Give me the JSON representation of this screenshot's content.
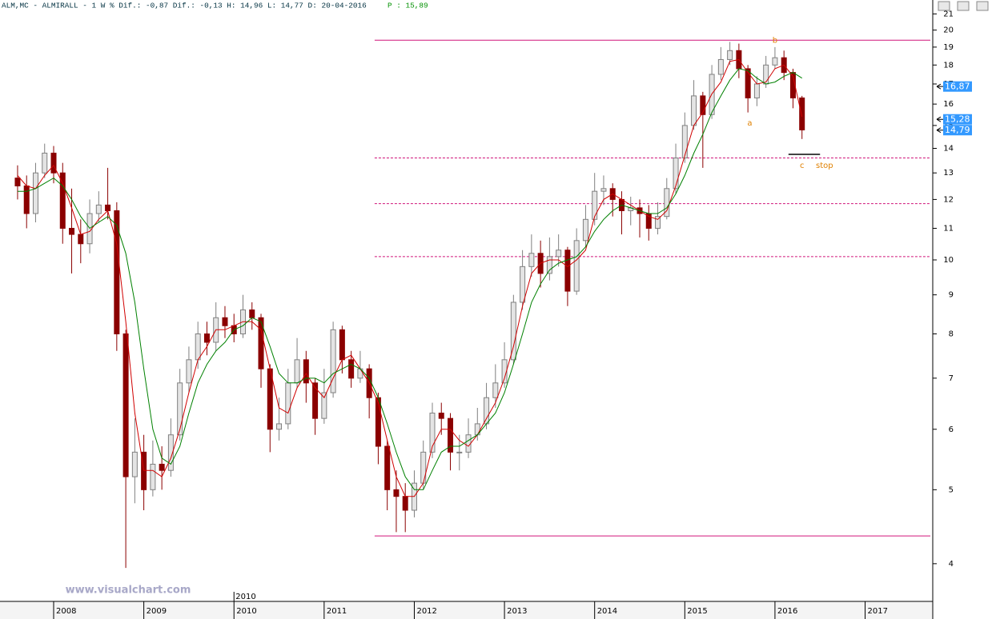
{
  "chart_data": {
    "type": "candlestick",
    "header": {
      "text": "ALM,MC - ALMIRALL -  1 W % Dif.: -0,87 Dif.: -0,13 H: 14,96 L: 14,77 D: 20-04-2016",
      "price": "P : 15,89"
    },
    "watermark": "www.visualchart.com",
    "log_scale": true,
    "xlim": [
      2007.405,
      2017.75
    ],
    "xticks": [
      2008,
      2009,
      2010,
      2011,
      2012,
      2013,
      2014,
      2015,
      2016,
      2017
    ],
    "cursor_label": {
      "value": 2010,
      "label": "2010"
    },
    "ylim": [
      3.57,
      21.9
    ],
    "yticks": [
      4,
      5,
      6,
      7,
      8,
      9,
      10,
      11,
      12,
      13,
      14,
      15,
      16,
      17,
      18,
      19,
      20,
      21
    ],
    "up_color": "#e4e4e4",
    "down_color": "#8b0000",
    "x": [
      2007.6,
      2007.7,
      2007.8,
      2007.9,
      2008.0,
      2008.1,
      2008.2,
      2008.3,
      2008.4,
      2008.5,
      2008.6,
      2008.7,
      2008.8,
      2008.9,
      2009.0,
      2009.1,
      2009.2,
      2009.3,
      2009.4,
      2009.5,
      2009.6,
      2009.7,
      2009.8,
      2009.9,
      2010.0,
      2010.1,
      2010.2,
      2010.3,
      2010.4,
      2010.5,
      2010.6,
      2010.7,
      2010.8,
      2010.9,
      2011.0,
      2011.1,
      2011.2,
      2011.3,
      2011.4,
      2011.5,
      2011.6,
      2011.7,
      2011.8,
      2011.9,
      2012.0,
      2012.1,
      2012.2,
      2012.3,
      2012.4,
      2012.5,
      2012.6,
      2012.7,
      2012.8,
      2012.9,
      2013.0,
      2013.1,
      2013.2,
      2013.3,
      2013.4,
      2013.5,
      2013.6,
      2013.7,
      2013.8,
      2013.9,
      2014.0,
      2014.1,
      2014.2,
      2014.3,
      2014.4,
      2014.5,
      2014.6,
      2014.7,
      2014.8,
      2014.9,
      2015.0,
      2015.1,
      2015.2,
      2015.3,
      2015.4,
      2015.5,
      2015.6,
      2015.7,
      2015.8,
      2015.9,
      2016.0,
      2016.1,
      2016.2,
      2016.3
    ],
    "open": [
      12.8,
      12.5,
      11.5,
      13.0,
      13.8,
      13.0,
      11.0,
      10.8,
      10.5,
      11.5,
      11.8,
      11.6,
      8.0,
      5.2,
      5.6,
      5.0,
      5.4,
      5.3,
      5.9,
      6.9,
      7.4,
      8.0,
      7.8,
      8.4,
      8.2,
      8.0,
      8.6,
      8.4,
      7.2,
      6.0,
      6.1,
      6.9,
      7.4,
      6.9,
      6.2,
      6.7,
      8.1,
      7.4,
      7.0,
      7.2,
      6.6,
      5.7,
      5.0,
      4.9,
      4.7,
      5.1,
      5.6,
      6.3,
      6.2,
      5.6,
      5.6,
      5.9,
      6.1,
      6.6,
      6.9,
      7.4,
      8.8,
      9.8,
      10.2,
      9.6,
      10.1,
      10.3,
      9.1,
      10.6,
      11.3,
      12.3,
      12.4,
      12.0,
      11.6,
      11.7,
      11.5,
      11.0,
      11.4,
      12.4,
      13.6,
      15.0,
      16.4,
      15.5,
      17.5,
      18.3,
      18.8,
      17.8,
      16.3,
      17.0,
      18.0,
      18.4,
      17.6,
      16.3
    ],
    "high": [
      13.3,
      12.9,
      13.4,
      14.2,
      14.1,
      13.4,
      12.4,
      11.3,
      12.0,
      12.3,
      13.2,
      11.9,
      8.1,
      6.2,
      5.9,
      5.8,
      5.7,
      6.2,
      7.2,
      7.7,
      8.3,
      8.3,
      8.8,
      8.7,
      8.5,
      9.0,
      8.8,
      8.5,
      7.3,
      6.6,
      7.2,
      7.9,
      7.6,
      7.0,
      7.2,
      8.3,
      8.2,
      7.6,
      7.6,
      7.3,
      6.7,
      5.8,
      5.3,
      5.1,
      5.3,
      5.8,
      6.5,
      6.5,
      6.3,
      5.9,
      6.2,
      6.4,
      6.9,
      7.3,
      7.8,
      9.0,
      10.3,
      10.8,
      10.6,
      10.7,
      10.8,
      10.4,
      11.0,
      11.8,
      13.0,
      12.9,
      12.6,
      12.3,
      12.1,
      12.0,
      11.8,
      11.9,
      12.8,
      14.2,
      15.6,
      17.2,
      16.6,
      18.0,
      19.0,
      19.3,
      19.2,
      18.0,
      17.4,
      18.5,
      19.0,
      18.8,
      17.8,
      16.4
    ],
    "low": [
      12.0,
      11.0,
      11.2,
      12.8,
      12.6,
      10.5,
      9.6,
      9.9,
      10.2,
      11.2,
      11.3,
      7.6,
      3.95,
      4.8,
      4.7,
      4.9,
      5.0,
      5.2,
      5.8,
      6.7,
      7.2,
      7.5,
      7.6,
      7.9,
      7.8,
      7.9,
      8.1,
      6.8,
      5.6,
      5.8,
      6.0,
      6.8,
      6.5,
      5.9,
      6.1,
      6.6,
      7.1,
      6.8,
      6.9,
      6.2,
      5.4,
      4.7,
      4.4,
      4.4,
      4.6,
      5.0,
      5.5,
      5.9,
      5.3,
      5.3,
      5.5,
      5.8,
      6.0,
      6.4,
      6.8,
      7.3,
      8.6,
      9.5,
      9.2,
      9.4,
      9.8,
      8.7,
      9.0,
      10.4,
      11.1,
      11.8,
      11.4,
      10.8,
      11.1,
      10.7,
      10.6,
      10.8,
      11.3,
      12.2,
      13.4,
      14.8,
      13.2,
      15.3,
      17.2,
      18.0,
      17.3,
      15.6,
      15.9,
      16.8,
      17.8,
      17.2,
      15.8,
      14.4
    ],
    "close": [
      12.5,
      11.5,
      13.0,
      13.8,
      13.0,
      11.0,
      10.8,
      10.5,
      11.5,
      11.8,
      11.6,
      8.0,
      5.2,
      5.6,
      5.0,
      5.4,
      5.3,
      5.9,
      6.9,
      7.4,
      8.0,
      7.8,
      8.4,
      8.2,
      8.0,
      8.6,
      8.4,
      7.2,
      6.0,
      6.1,
      6.9,
      7.4,
      6.9,
      6.2,
      6.7,
      8.1,
      7.4,
      7.0,
      7.2,
      6.6,
      5.7,
      5.0,
      4.9,
      4.7,
      5.1,
      5.6,
      6.3,
      6.2,
      5.6,
      5.6,
      5.9,
      6.1,
      6.6,
      6.9,
      7.4,
      8.8,
      9.8,
      10.2,
      9.6,
      10.1,
      10.3,
      9.1,
      10.6,
      11.3,
      12.3,
      12.4,
      12.0,
      11.6,
      11.7,
      11.5,
      11.0,
      11.4,
      12.4,
      13.6,
      15.0,
      16.4,
      15.5,
      17.5,
      18.3,
      18.8,
      17.8,
      16.3,
      17.0,
      18.0,
      18.4,
      17.6,
      16.3,
      14.8
    ],
    "moving_averages": [
      {
        "color": "#d00000",
        "values": [
          12.9,
          12.5,
          12.4,
          12.9,
          13.3,
          12.6,
          11.7,
          10.8,
          10.9,
          11.3,
          11.6,
          10.5,
          8.3,
          6.3,
          5.3,
          5.3,
          5.2,
          5.5,
          6.0,
          6.7,
          7.4,
          7.7,
          8.1,
          8.1,
          8.2,
          8.3,
          8.3,
          8.1,
          7.2,
          6.4,
          6.3,
          6.8,
          7.1,
          6.8,
          6.6,
          7.0,
          7.4,
          7.5,
          7.2,
          6.9,
          6.5,
          5.8,
          5.2,
          4.9,
          4.9,
          5.1,
          5.7,
          6.0,
          6.0,
          5.8,
          5.7,
          5.9,
          6.2,
          6.5,
          7.0,
          7.7,
          8.7,
          9.6,
          9.9,
          10.0,
          10.0,
          9.8,
          10.0,
          10.3,
          11.4,
          12.0,
          12.2,
          12.0,
          11.8,
          11.6,
          11.4,
          11.3,
          11.6,
          12.5,
          13.7,
          15.0,
          15.6,
          16.5,
          17.1,
          18.2,
          18.3,
          17.6,
          17.0,
          17.1,
          17.8,
          18.0,
          17.4,
          15.4
        ]
      },
      {
        "color": "#008000",
        "values": [
          12.3,
          12.3,
          12.4,
          12.6,
          12.8,
          12.5,
          12.0,
          11.4,
          11.0,
          11.2,
          11.4,
          11.1,
          10.2,
          8.8,
          7.2,
          6.0,
          5.5,
          5.4,
          5.7,
          6.3,
          6.9,
          7.3,
          7.6,
          7.8,
          8.1,
          8.2,
          8.4,
          8.3,
          7.7,
          7.1,
          6.9,
          6.9,
          7.0,
          7.0,
          6.9,
          7.1,
          7.2,
          7.3,
          7.2,
          7.0,
          6.6,
          6.1,
          5.6,
          5.2,
          5.0,
          5.0,
          5.3,
          5.6,
          5.7,
          5.7,
          5.8,
          5.9,
          6.1,
          6.3,
          6.7,
          7.3,
          8.0,
          8.8,
          9.3,
          9.7,
          9.9,
          10.0,
          10.1,
          10.4,
          10.9,
          11.3,
          11.6,
          11.8,
          11.7,
          11.6,
          11.5,
          11.5,
          11.7,
          12.2,
          12.9,
          13.8,
          14.6,
          15.6,
          16.4,
          17.2,
          17.8,
          17.7,
          17.3,
          17.0,
          17.1,
          17.4,
          17.6,
          17.3
        ]
      }
    ],
    "line_color": "#d0147a",
    "hlines": [
      {
        "value": 19.4,
        "from": 2011.56,
        "style": "solid"
      },
      {
        "value": 13.6,
        "from": 2011.56,
        "style": "dashed"
      },
      {
        "value": 11.85,
        "from": 2011.56,
        "style": "dashed"
      },
      {
        "value": 10.1,
        "from": 2011.56,
        "style": "dashed"
      },
      {
        "value": 4.35,
        "from": 2011.56,
        "style": "solid"
      }
    ],
    "stop_line": {
      "value": 13.75,
      "from": 2016.15,
      "to": 2016.5
    },
    "annotation_color": "#e08000",
    "annotations": [
      {
        "text": "a",
        "x": 2015.72,
        "y": 15.1
      },
      {
        "text": "b",
        "x": 2016.0,
        "y": 19.4
      },
      {
        "text": "c",
        "x": 2016.3,
        "y": 13.3
      },
      {
        "text": "stop",
        "x": 2016.55,
        "y": 13.3
      }
    ],
    "price_tags": [
      {
        "value": 16.87,
        "label": "16,87"
      },
      {
        "value": 15.28,
        "label": "15,28"
      },
      {
        "value": 14.79,
        "label": "14,79"
      }
    ]
  }
}
